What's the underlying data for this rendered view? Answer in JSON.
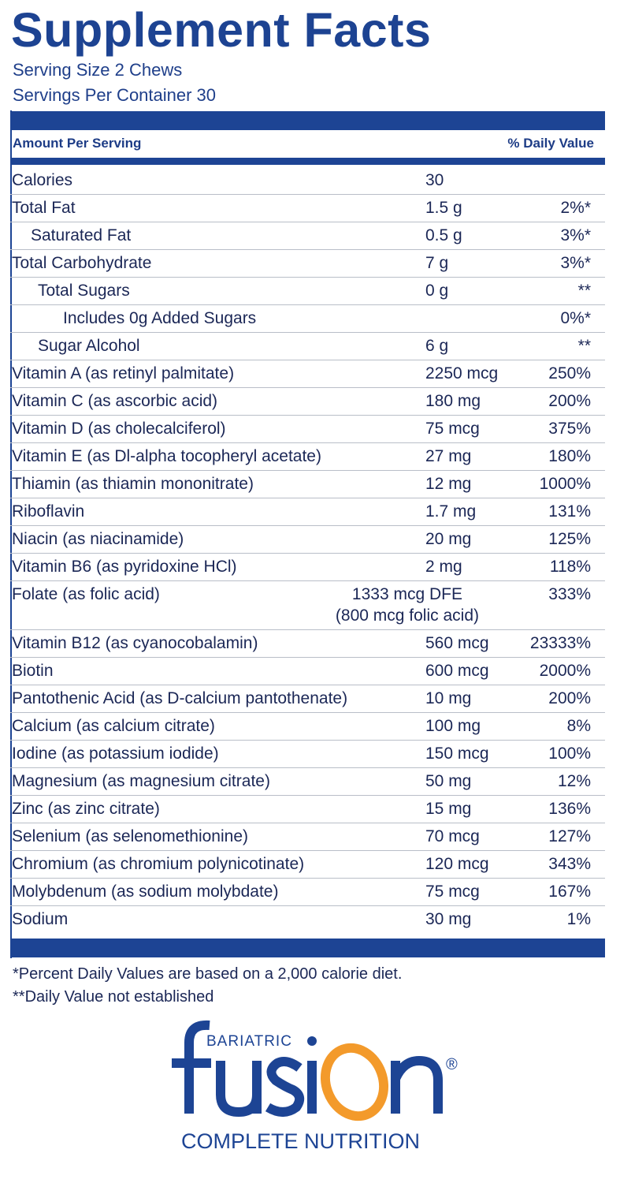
{
  "title": "Supplement Facts",
  "serving_size": "Serving Size 2 Chews",
  "servings_per_container": "Servings Per Container 30",
  "header": {
    "amount": "Amount Per Serving",
    "dv": "% Daily Value"
  },
  "rows": [
    {
      "name": "Calories",
      "amount": "30",
      "dv": "",
      "indent": 0
    },
    {
      "name": "Total Fat",
      "amount": "1.5 g",
      "dv": "2%*",
      "indent": 0
    },
    {
      "name": "Saturated Fat",
      "amount": "0.5 g",
      "dv": "3%*",
      "indent": 1
    },
    {
      "name": "Total Carbohydrate",
      "amount": "7 g",
      "dv": "3%*",
      "indent": 0
    },
    {
      "name": "Total Sugars",
      "amount": "0 g",
      "dv": "**",
      "indent": 2
    },
    {
      "name": "Includes 0g Added Sugars",
      "amount": "",
      "dv": "0%*",
      "indent": 3
    },
    {
      "name": "Sugar Alcohol",
      "amount": "6 g",
      "dv": "**",
      "indent": 2
    },
    {
      "name": "Vitamin A (as retinyl palmitate)",
      "amount": "2250 mcg",
      "dv": "250%",
      "indent": 0
    },
    {
      "name": "Vitamin C (as ascorbic acid)",
      "amount": "180 mg",
      "dv": "200%",
      "indent": 0
    },
    {
      "name": "Vitamin D (as cholecalciferol)",
      "amount": "75 mcg",
      "dv": "375%",
      "indent": 0
    },
    {
      "name": "Vitamin E (as Dl-alpha tocopheryl acetate)",
      "amount": "27 mg",
      "dv": "180%",
      "indent": 0
    },
    {
      "name": "Thiamin (as thiamin mononitrate)",
      "amount": "12 mg",
      "dv": "1000%",
      "indent": 0
    },
    {
      "name": "Riboflavin",
      "amount": "1.7 mg",
      "dv": "131%",
      "indent": 0
    },
    {
      "name": "Niacin (as niacinamide)",
      "amount": "20 mg",
      "dv": "125%",
      "indent": 0
    },
    {
      "name": "Vitamin B6 (as pyridoxine HCl)",
      "amount": "2 mg",
      "dv": "118%",
      "indent": 0
    },
    {
      "name": "Folate (as folic acid)",
      "amount": "1333 mcg DFE",
      "amount2": "(800 mcg folic acid)",
      "dv": "333%",
      "indent": 0
    },
    {
      "name": "Vitamin B12 (as cyanocobalamin)",
      "amount": "560 mcg",
      "dv": "23333%",
      "indent": 0
    },
    {
      "name": "Biotin",
      "amount": "600 mcg",
      "dv": "2000%",
      "indent": 0
    },
    {
      "name": "Pantothenic Acid (as D-calcium pantothenate)",
      "amount": "10 mg",
      "dv": "200%",
      "indent": 0
    },
    {
      "name": "Calcium (as calcium citrate)",
      "amount": "100 mg",
      "dv": "8%",
      "indent": 0
    },
    {
      "name": "Iodine (as potassium iodide)",
      "amount": "150 mcg",
      "dv": "100%",
      "indent": 0
    },
    {
      "name": "Magnesium (as magnesium citrate)",
      "amount": "50 mg",
      "dv": "12%",
      "indent": 0
    },
    {
      "name": "Zinc (as zinc citrate)",
      "amount": "15 mg",
      "dv": "136%",
      "indent": 0
    },
    {
      "name": "Selenium (as selenomethionine)",
      "amount": "70 mcg",
      "dv": "127%",
      "indent": 0
    },
    {
      "name": "Chromium (as chromium polynicotinate)",
      "amount": "120 mcg",
      "dv": "343%",
      "indent": 0
    },
    {
      "name": "Molybdenum (as sodium molybdate)",
      "amount": "75 mcg",
      "dv": "167%",
      "indent": 0
    },
    {
      "name": "Sodium",
      "amount": "30 mg",
      "dv": "1%",
      "indent": 0
    }
  ],
  "footnotes": [
    "*Percent Daily Values are based on a 2,000 calorie diet.",
    "**Daily Value not established"
  ],
  "logo": {
    "top": "BARIATRIC",
    "word": "fusion",
    "registered": "®",
    "tagline": "COMPLETE NUTRITION"
  },
  "colors": {
    "brand_blue": "#1d4494",
    "brand_orange": "#f39a2b"
  }
}
